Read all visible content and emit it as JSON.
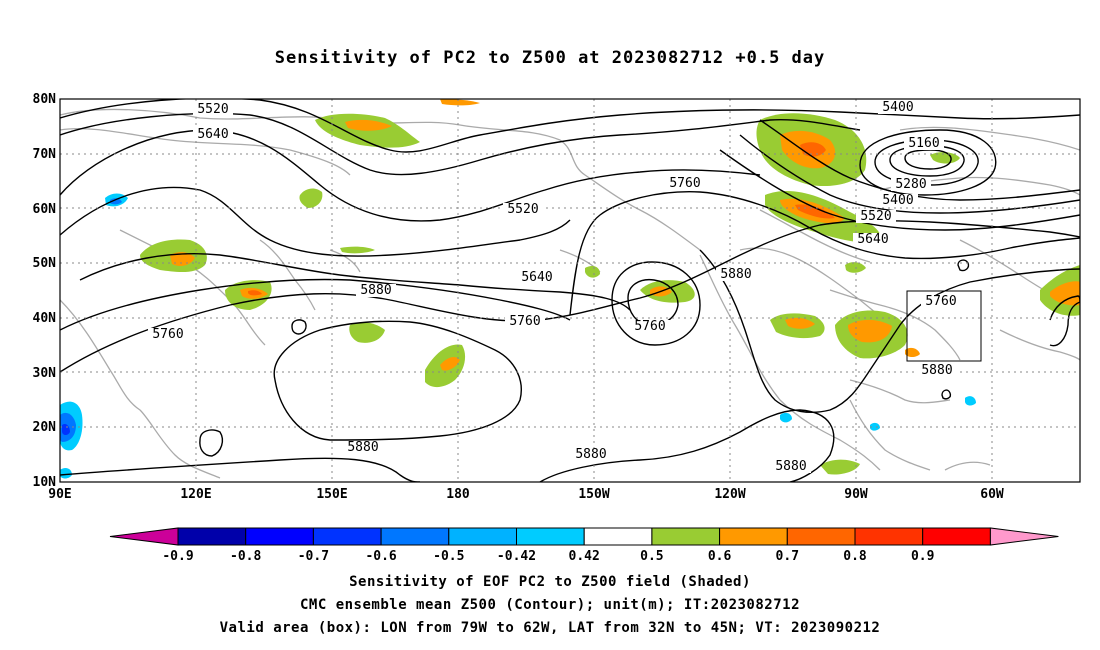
{
  "title": "Sensitivity of PC2 to Z500 at 2023082712 +0.5 day",
  "lat_labels": [
    "80N",
    "70N",
    "60N",
    "50N",
    "40N",
    "30N",
    "20N",
    "10N"
  ],
  "lon_labels": [
    "90E",
    "120E",
    "150E",
    "180",
    "150W",
    "120W",
    "90W",
    "60W"
  ],
  "contour_labels": [
    "5520",
    "5640",
    "5400",
    "5160",
    "5280",
    "5400",
    "5520",
    "5640",
    "5760",
    "5520",
    "5640",
    "5760",
    "5760",
    "5880",
    "5760",
    "5880",
    "5880",
    "5880",
    "5880",
    "5760",
    "5880"
  ],
  "colorbar": {
    "labels": [
      "-0.9",
      "-0.8",
      "-0.7",
      "-0.6",
      "-0.5",
      "-0.42",
      "0.42",
      "0.5",
      "0.6",
      "0.7",
      "0.8",
      "0.9"
    ],
    "colors": [
      "#cc0099",
      "#0000aa",
      "#0000ff",
      "#0033ff",
      "#0077ff",
      "#00b2ff",
      "#00ccff",
      "#ffffff",
      "#99cc33",
      "#ff9900",
      "#ff6600",
      "#ff3300",
      "#ff0000",
      "#ff99cc"
    ]
  },
  "captions": [
    "Sensitivity of EOF PC2 to Z500 field (Shaded)",
    "CMC ensemble mean Z500 (Contour); unit(m); IT:2023082712",
    "Valid area (box): LON from 79W to 62W, LAT from 32N to 45N; VT: 2023090212"
  ]
}
